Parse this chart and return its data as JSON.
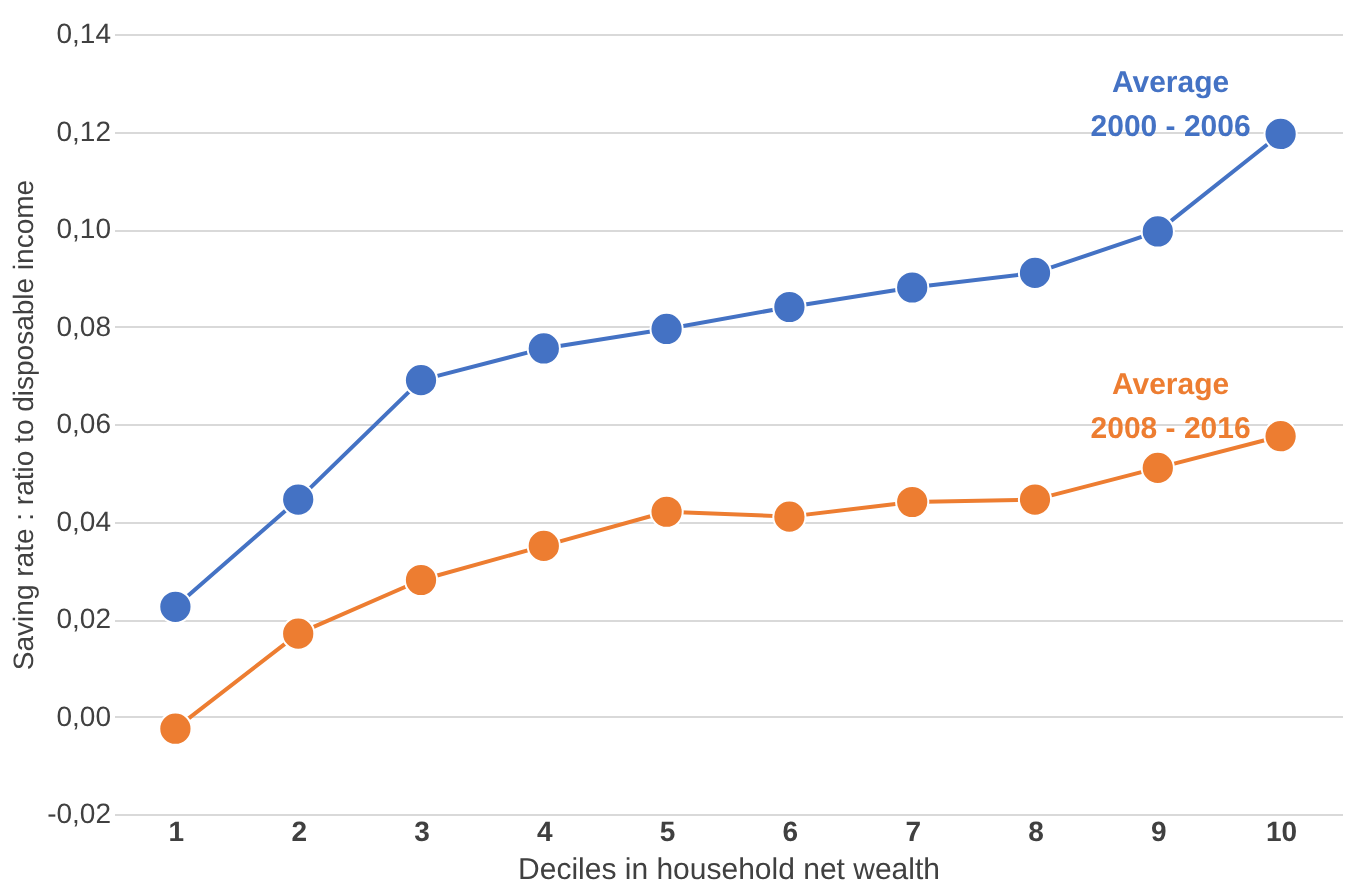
{
  "chart_data": {
    "type": "line",
    "xlabel": "Deciles in household net wealth",
    "ylabel": "Saving rate : ratio to disposable income",
    "categories": [
      "1",
      "2",
      "3",
      "4",
      "5",
      "6",
      "7",
      "8",
      "9",
      "10"
    ],
    "series": [
      {
        "name": "Average 2000 - 2006",
        "color": "#4472c4",
        "values": [
          0.0225,
          0.0445,
          0.069,
          0.0755,
          0.0795,
          0.084,
          0.088,
          0.091,
          0.0995,
          0.1195
        ]
      },
      {
        "name": "Average 2008 - 2016",
        "color": "#ed7d31",
        "values": [
          -0.0025,
          0.017,
          0.028,
          0.035,
          0.042,
          0.041,
          0.044,
          0.0445,
          0.051,
          0.0575
        ]
      }
    ],
    "ylim": [
      -0.02,
      0.14
    ],
    "yticks": [
      {
        "value": -0.02,
        "label": "-0,02"
      },
      {
        "value": 0,
        "label": "0,00"
      },
      {
        "value": 0.02,
        "label": "0,02"
      },
      {
        "value": 0.04,
        "label": "0,04"
      },
      {
        "value": 0.06,
        "label": "0,06"
      },
      {
        "value": 0.08,
        "label": "0,08"
      },
      {
        "value": 0.1,
        "label": "0,10"
      },
      {
        "value": 0.12,
        "label": "0,12"
      },
      {
        "value": 0.14,
        "label": "0,14"
      }
    ],
    "grid": "y",
    "marker": "circle",
    "line_style": "solid"
  }
}
